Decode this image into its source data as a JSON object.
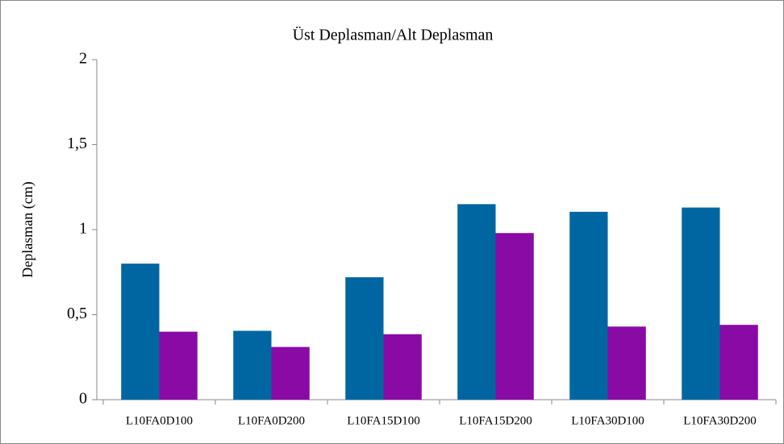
{
  "chart_data": {
    "type": "bar",
    "title": "Üst Deplasman/Alt Deplasman",
    "y_label": "Deplasman (cm)",
    "categories": [
      "L10FA0D100",
      "L10FA0D200",
      "L10FA15D100",
      "L10FA15D200",
      "L10FA30D100",
      "L10FA30D200"
    ],
    "series": [
      {
        "color": "#0066a1",
        "values": [
          0.8,
          0.405,
          0.72,
          1.15,
          1.105,
          1.13
        ]
      },
      {
        "color": "#8a0aa6",
        "values": [
          0.4,
          0.31,
          0.385,
          0.98,
          0.43,
          0.44
        ]
      }
    ],
    "ylim": [
      0,
      2
    ],
    "yticks": [
      0,
      {
        "value": 0.5,
        "label": "0,5"
      },
      1,
      {
        "value": 1.5,
        "label": "1,5"
      },
      2
    ],
    "grid": false
  }
}
